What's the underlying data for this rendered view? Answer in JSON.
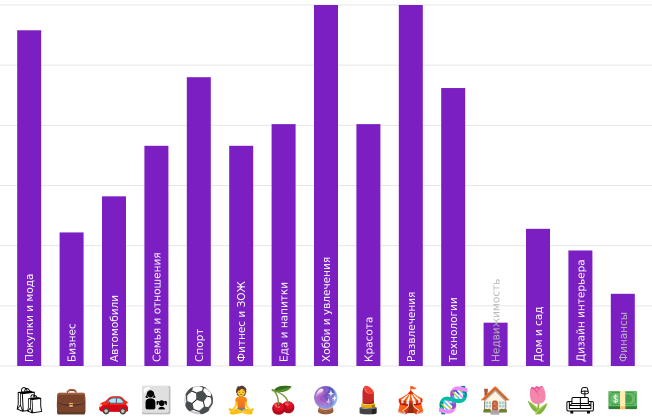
{
  "chart_data": {
    "type": "bar",
    "ylim": [
      0,
      100
    ],
    "grid": true,
    "bar_color": "#7b1fc2",
    "grid_color": "#e6e6e6",
    "categories": [
      "Покупки и мода",
      "Бизнес",
      "Автомобили",
      "Семья и отношения",
      "Спорт",
      "Фитнес и ЗОЖ",
      "Еда и напитки",
      "Хобби и увлечения",
      "Красота",
      "Развлечения",
      "Технологии",
      "Недвижимость",
      "Дом и сад",
      "Дизайн интерьера",
      "Финансы"
    ],
    "values": [
      93,
      37,
      47,
      61,
      80,
      61,
      67,
      100,
      67,
      100,
      77,
      12,
      38,
      32,
      20
    ],
    "icons": [
      "shopping-bags-icon",
      "briefcase-icon",
      "car-icon",
      "family-icon",
      "soccer-ball-icon",
      "yoga-icon",
      "cherries-icon",
      "crystal-ball-icon",
      "lipstick-icon",
      "circus-tent-icon",
      "dna-icon",
      "house-icon",
      "tulip-icon",
      "sofa-icon",
      "money-icon"
    ],
    "icon_glyphs": [
      "🛍",
      "💼",
      "🚗",
      "👩‍👧",
      "⚽",
      "🧘",
      "🍒",
      "🔮",
      "💄",
      "🎪",
      "🧬",
      "🏠",
      "🌷",
      "🛋",
      "💵"
    ]
  }
}
